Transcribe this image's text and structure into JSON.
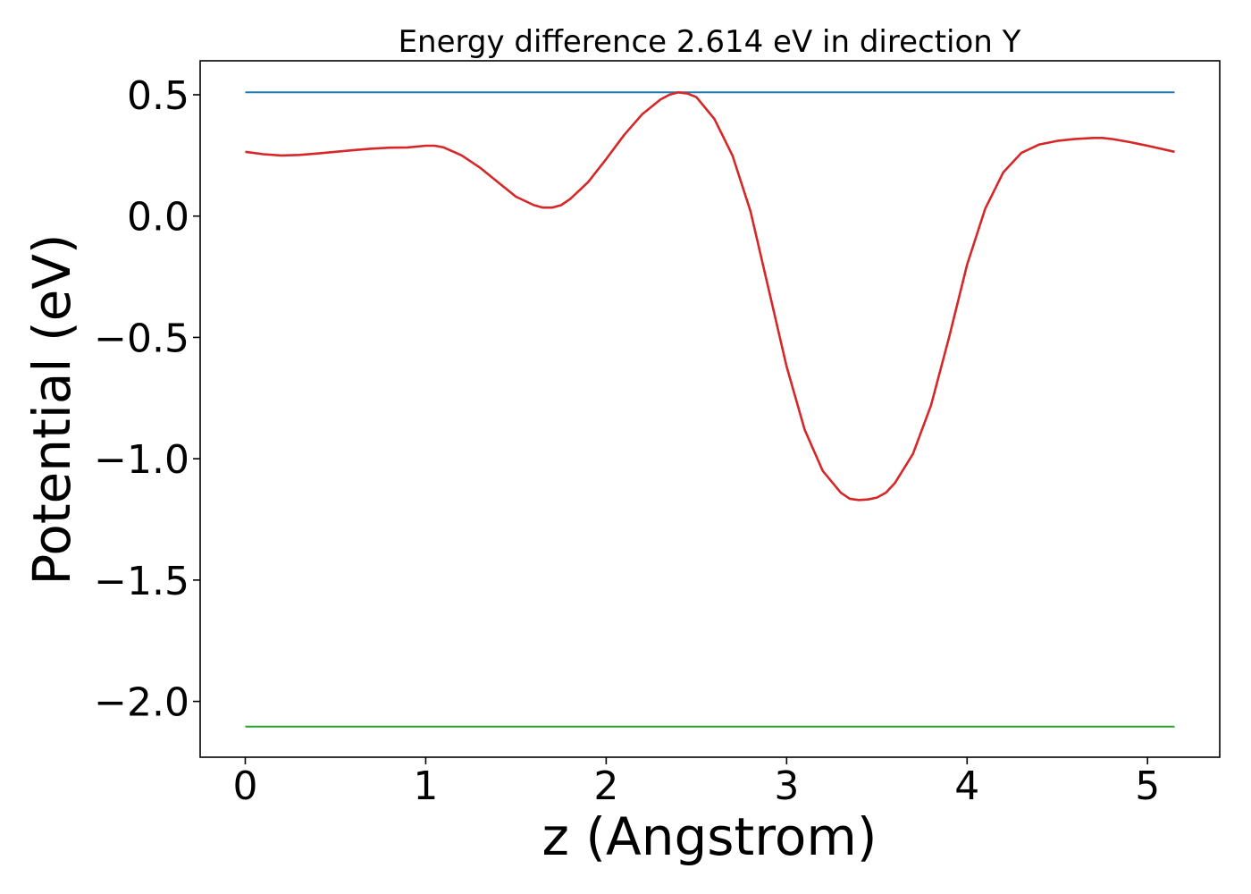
{
  "chart_data": {
    "type": "line",
    "title": "Energy difference 2.614 eV in direction Y",
    "xlabel": "z (Angstrom)",
    "ylabel": "Potential (eV)",
    "xlim": [
      -0.25,
      5.4
    ],
    "ylim": [
      -2.23,
      0.64
    ],
    "xticks": [
      0,
      1,
      2,
      3,
      4,
      5
    ],
    "xtick_labels": [
      "0",
      "1",
      "2",
      "3",
      "4",
      "5"
    ],
    "yticks": [
      0.5,
      0.0,
      -0.5,
      -1.0,
      -1.5,
      -2.0
    ],
    "ytick_labels": [
      "0.5",
      "0.0",
      "−0.5",
      "−1.0",
      "−1.5",
      "−2.0"
    ],
    "grid": false,
    "series": [
      {
        "color": "#1f77b4",
        "x": [
          0,
          5.15
        ],
        "y": [
          0.51,
          0.51
        ]
      },
      {
        "color": "#2ca02c",
        "x": [
          0,
          5.15
        ],
        "y": [
          -2.104,
          -2.104
        ]
      },
      {
        "color": "#d62728",
        "x": [
          0,
          0.1,
          0.2,
          0.3,
          0.4,
          0.5,
          0.6,
          0.7,
          0.8,
          0.9,
          1.0,
          1.05,
          1.1,
          1.2,
          1.3,
          1.4,
          1.5,
          1.6,
          1.65,
          1.7,
          1.75,
          1.8,
          1.9,
          2.0,
          2.1,
          2.2,
          2.3,
          2.35,
          2.4,
          2.45,
          2.5,
          2.6,
          2.7,
          2.8,
          2.9,
          3.0,
          3.1,
          3.2,
          3.3,
          3.35,
          3.4,
          3.45,
          3.5,
          3.55,
          3.6,
          3.7,
          3.8,
          3.9,
          4.0,
          4.1,
          4.2,
          4.3,
          4.4,
          4.5,
          4.6,
          4.7,
          4.75,
          4.8,
          4.9,
          5.0,
          5.15
        ],
        "y": [
          0.265,
          0.255,
          0.25,
          0.252,
          0.258,
          0.265,
          0.272,
          0.278,
          0.282,
          0.283,
          0.29,
          0.29,
          0.283,
          0.25,
          0.2,
          0.14,
          0.08,
          0.045,
          0.035,
          0.035,
          0.045,
          0.07,
          0.14,
          0.235,
          0.335,
          0.42,
          0.48,
          0.5,
          0.51,
          0.505,
          0.49,
          0.4,
          0.25,
          0.02,
          -0.3,
          -0.62,
          -0.88,
          -1.05,
          -1.14,
          -1.165,
          -1.17,
          -1.168,
          -1.16,
          -1.14,
          -1.1,
          -0.98,
          -0.78,
          -0.5,
          -0.2,
          0.03,
          0.18,
          0.26,
          0.295,
          0.31,
          0.318,
          0.322,
          0.322,
          0.318,
          0.305,
          0.29,
          0.265
        ]
      }
    ]
  }
}
